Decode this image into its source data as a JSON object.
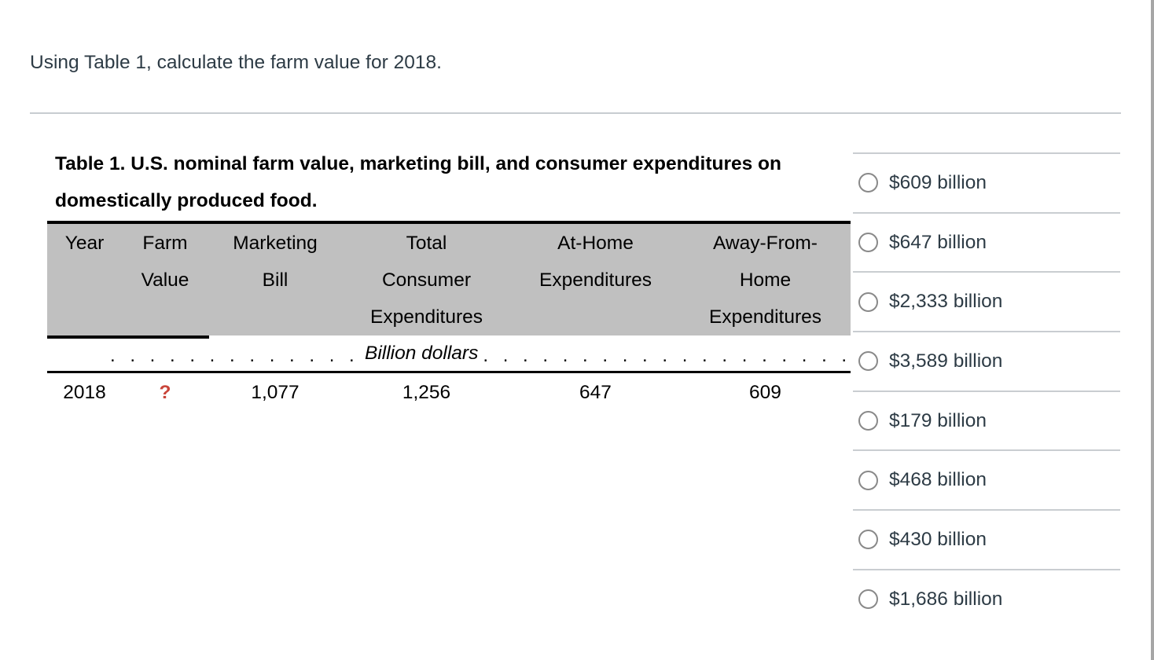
{
  "question": {
    "text": "Using Table 1, calculate the farm value for 2018."
  },
  "table": {
    "title": "Table 1. U.S. nominal farm value, marketing bill, and consumer expenditures on domestically produced food.",
    "columns": [
      {
        "label": [
          "Year"
        ]
      },
      {
        "label": [
          "Farm",
          "Value"
        ]
      },
      {
        "label": [
          "Marketing",
          "Bill"
        ]
      },
      {
        "label": [
          "Total",
          "Consumer",
          "Expenditures"
        ]
      },
      {
        "label": [
          "At-Home",
          "Expenditures"
        ]
      },
      {
        "label": [
          "Away-From-",
          "Home",
          "Expenditures"
        ]
      }
    ],
    "units_row": {
      "label": "Billion dollars",
      "left_dots": ". . . . . . . . . . . . . . . . .",
      "right_dots": ". . . . . . . . . . . . . . . . . . . . . . . ."
    },
    "rows": [
      {
        "values": [
          "2018",
          "?",
          "1,077",
          "1,256",
          "647",
          "609"
        ]
      }
    ]
  },
  "options": [
    {
      "label": "$609 billion",
      "selected": false
    },
    {
      "label": "$647 billion",
      "selected": false
    },
    {
      "label": "$2,333 billion",
      "selected": false
    },
    {
      "label": "$3,589 billion",
      "selected": false
    },
    {
      "label": "$179 billion",
      "selected": false
    },
    {
      "label": "$468 billion",
      "selected": false
    },
    {
      "label": "$430 billion",
      "selected": false
    },
    {
      "label": "$1,686 billion",
      "selected": false
    }
  ],
  "colors": {
    "missing_value": "#c9453a",
    "table_header_bg": "#c0c0c0",
    "divider": "#c7ccd1",
    "radio_border": "#898989",
    "scrollbar": "#a6a6a6",
    "text": "#2d3b45"
  }
}
